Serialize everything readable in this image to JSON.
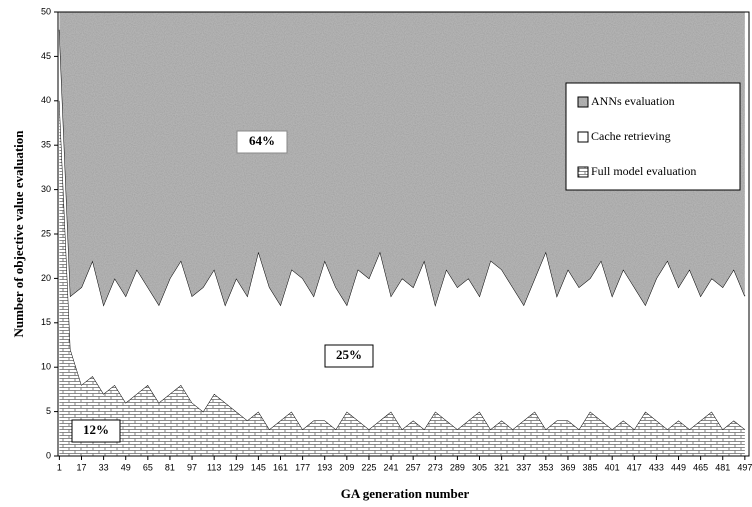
{
  "chart_data": {
    "type": "stacked-area",
    "x_label": "GA generation number",
    "y_label": "Number of objective value evaluation",
    "annotations": [
      "64%",
      "25%",
      "12%"
    ],
    "x": [
      1,
      9,
      17,
      25,
      33,
      41,
      49,
      57,
      65,
      73,
      81,
      89,
      97,
      105,
      113,
      121,
      129,
      137,
      145,
      153,
      161,
      169,
      177,
      185,
      193,
      201,
      209,
      217,
      225,
      233,
      241,
      249,
      257,
      265,
      273,
      281,
      289,
      297,
      305,
      313,
      321,
      329,
      337,
      345,
      353,
      361,
      369,
      377,
      385,
      393,
      401,
      409,
      417,
      425,
      433,
      441,
      449,
      457,
      465,
      473,
      481,
      489,
      497
    ],
    "series": [
      {
        "name": "ANNs evaluation",
        "color": "#9a9a9a",
        "pattern": "speckle",
        "values": [
          2,
          32,
          31,
          28,
          33,
          30,
          32,
          29,
          31,
          33,
          30,
          28,
          32,
          31,
          29,
          33,
          30,
          32,
          27,
          31,
          33,
          29,
          30,
          32,
          28,
          31,
          33,
          29,
          30,
          27,
          32,
          30,
          31,
          28,
          33,
          29,
          31,
          30,
          32,
          28,
          29,
          31,
          33,
          30,
          27,
          32,
          29,
          31,
          30,
          28,
          32,
          29,
          31,
          33,
          30,
          28,
          31,
          29,
          32,
          30,
          31,
          29,
          32
        ]
      },
      {
        "name": "Cache retrieving",
        "color": "#ffffff",
        "pattern": "none",
        "values": [
          8,
          6,
          11,
          13,
          10,
          12,
          12,
          14,
          11,
          11,
          13,
          14,
          12,
          14,
          14,
          11,
          15,
          14,
          18,
          16,
          13,
          16,
          17,
          14,
          18,
          16,
          12,
          17,
          17,
          19,
          13,
          17,
          15,
          19,
          12,
          17,
          16,
          16,
          13,
          19,
          17,
          16,
          13,
          15,
          20,
          14,
          17,
          16,
          15,
          18,
          15,
          17,
          16,
          12,
          16,
          19,
          15,
          18,
          14,
          15,
          16,
          17,
          15
        ]
      },
      {
        "name": "Full model evaluation",
        "color": "#ffffff",
        "pattern": "brick",
        "values": [
          40,
          12,
          8,
          9,
          7,
          8,
          6,
          7,
          8,
          6,
          7,
          8,
          6,
          5,
          7,
          6,
          5,
          4,
          5,
          3,
          4,
          5,
          3,
          4,
          4,
          3,
          5,
          4,
          3,
          4,
          5,
          3,
          4,
          3,
          5,
          4,
          3,
          4,
          5,
          3,
          4,
          3,
          4,
          5,
          3,
          4,
          4,
          3,
          5,
          4,
          3,
          4,
          3,
          5,
          4,
          3,
          4,
          3,
          4,
          5,
          3,
          4,
          3
        ]
      }
    ],
    "xlim": [
      0,
      500
    ],
    "xticks": [
      1,
      17,
      33,
      49,
      65,
      81,
      97,
      113,
      129,
      145,
      161,
      177,
      193,
      209,
      225,
      241,
      257,
      273,
      289,
      305,
      321,
      337,
      353,
      369,
      385,
      401,
      417,
      433,
      449,
      465,
      481,
      497
    ],
    "ylim": [
      0,
      50
    ],
    "yticks": [
      0,
      5,
      10,
      15,
      20,
      25,
      30,
      35,
      40,
      45,
      50
    ]
  }
}
